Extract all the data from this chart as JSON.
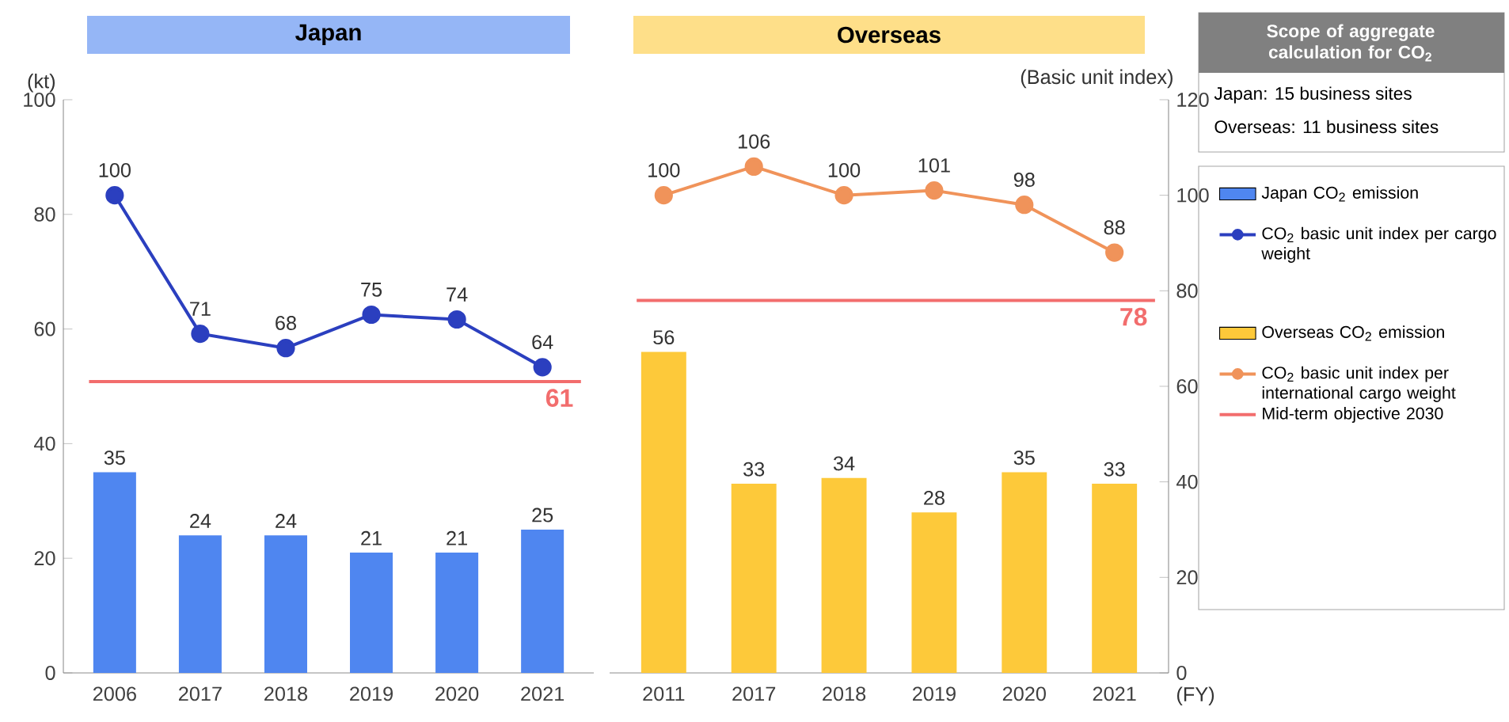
{
  "chart_data": [
    {
      "type": "bar",
      "title": "Japan",
      "categories": [
        "2006",
        "2017",
        "2018",
        "2019",
        "2020",
        "2021"
      ],
      "ylabel": "(kt)",
      "ylim": [
        0,
        100
      ],
      "yticks": [
        0,
        20,
        40,
        60,
        80,
        100
      ],
      "y2lim": [
        0,
        120
      ],
      "series": [
        {
          "name": "Japan CO$_{2}$ emission",
          "color": "#4f86f0",
          "values": [
            35,
            24,
            24,
            21,
            21,
            25
          ]
        },
        {
          "name": "CO$_{2}$ basic unit index per cargo weight",
          "type": "line",
          "axis": "y2",
          "color": "#2b3fbf",
          "values": [
            100,
            71,
            68,
            75,
            74,
            64
          ]
        }
      ],
      "ref_lines": [
        {
          "axis": "y2",
          "value": 61,
          "label": "61",
          "color": "#f26d6d"
        }
      ],
      "data_labels": true,
      "marker": "circle",
      "legend": "right"
    },
    {
      "type": "bar",
      "title": "Overseas",
      "categories": [
        "2011",
        "2017",
        "2018",
        "2019",
        "2020",
        "2021"
      ],
      "xlabel": "(FY)",
      "ylim": [
        0,
        100
      ],
      "y2label": "(Basic unit index)",
      "y2lim": [
        0,
        120
      ],
      "y2ticks": [
        0,
        20,
        40,
        60,
        80,
        100,
        120
      ],
      "series": [
        {
          "name": "Overseas CO$_{2}$ emission",
          "color": "#fdc93a",
          "values": [
            56,
            33,
            34,
            28,
            35,
            33
          ]
        },
        {
          "name": "CO$_{2}$ basic unit index per international cargo weight",
          "type": "line",
          "axis": "y2",
          "color": "#f0935a",
          "values": [
            100,
            106,
            100,
            101,
            98,
            88
          ]
        }
      ],
      "ref_lines": [
        {
          "axis": "y2",
          "value": 78,
          "label": "78",
          "color": "#f26d6d"
        }
      ],
      "annotations": [
        "Mid-term objective 2030",
        "Scope of aggregate calculation for CO$_{2}$",
        "Japan: 15 business sites",
        "Overseas: 11 business sites"
      ],
      "data_labels": true,
      "marker": "circle",
      "legend": "right"
    }
  ]
}
